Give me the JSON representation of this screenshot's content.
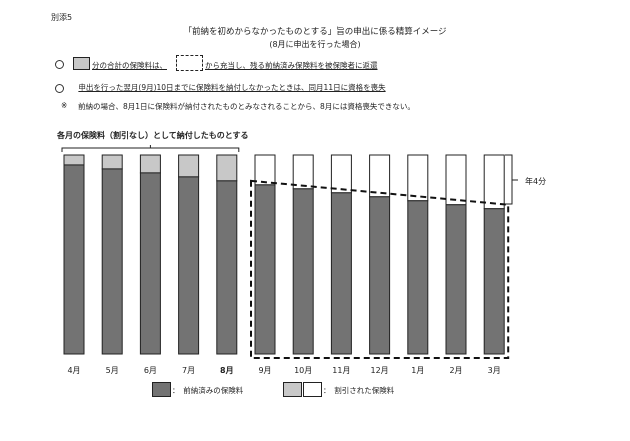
{
  "doc": {
    "label": "別添5",
    "title": "「前納を初めからなかったものとする」旨の申出に係る精算イメージ",
    "subtitle": "(8月に申出を行った場合)"
  },
  "notes": {
    "line1_pre": "分の合計の保険料は、",
    "line1_post": "から充当し、残る前納済み保険料を被保険者に返還",
    "line2": "申出を行った翌月(9月)10日までに保険料を納付しなかったときは、同月11日に資格を喪失",
    "line3_mark": "※",
    "line3": "前納の場合、8月1日に保険料が納付されたものとみなされることから、8月には資格喪失できない。"
  },
  "annotations": {
    "top_brace": "各月の保険料（割引なし）として納付したものとする",
    "side": "年4分"
  },
  "legend": {
    "prepaid": "：　前納済みの保険料",
    "discounted": "：　割引された保険料"
  },
  "colors": {
    "prepaid": "#737373",
    "paid_discount": "#c8c8c8",
    "refund_discount": "#ffffff",
    "border": "#222222"
  },
  "chart_data": {
    "type": "bar",
    "categories": [
      "4月",
      "5月",
      "6月",
      "7月",
      "8月",
      "9月",
      "10月",
      "11月",
      "12月",
      "1月",
      "2月",
      "3月"
    ],
    "bold_category": "8月",
    "total": 100,
    "series": [
      {
        "values": [
          95,
          93,
          91,
          89,
          87,
          85,
          83,
          81,
          79,
          77,
          75,
          73
        ]
      },
      {
        "values": [
          5,
          7,
          9,
          11,
          13,
          15,
          17,
          19,
          21,
          23,
          25,
          27
        ]
      }
    ],
    "refund_start_index": 5
  }
}
